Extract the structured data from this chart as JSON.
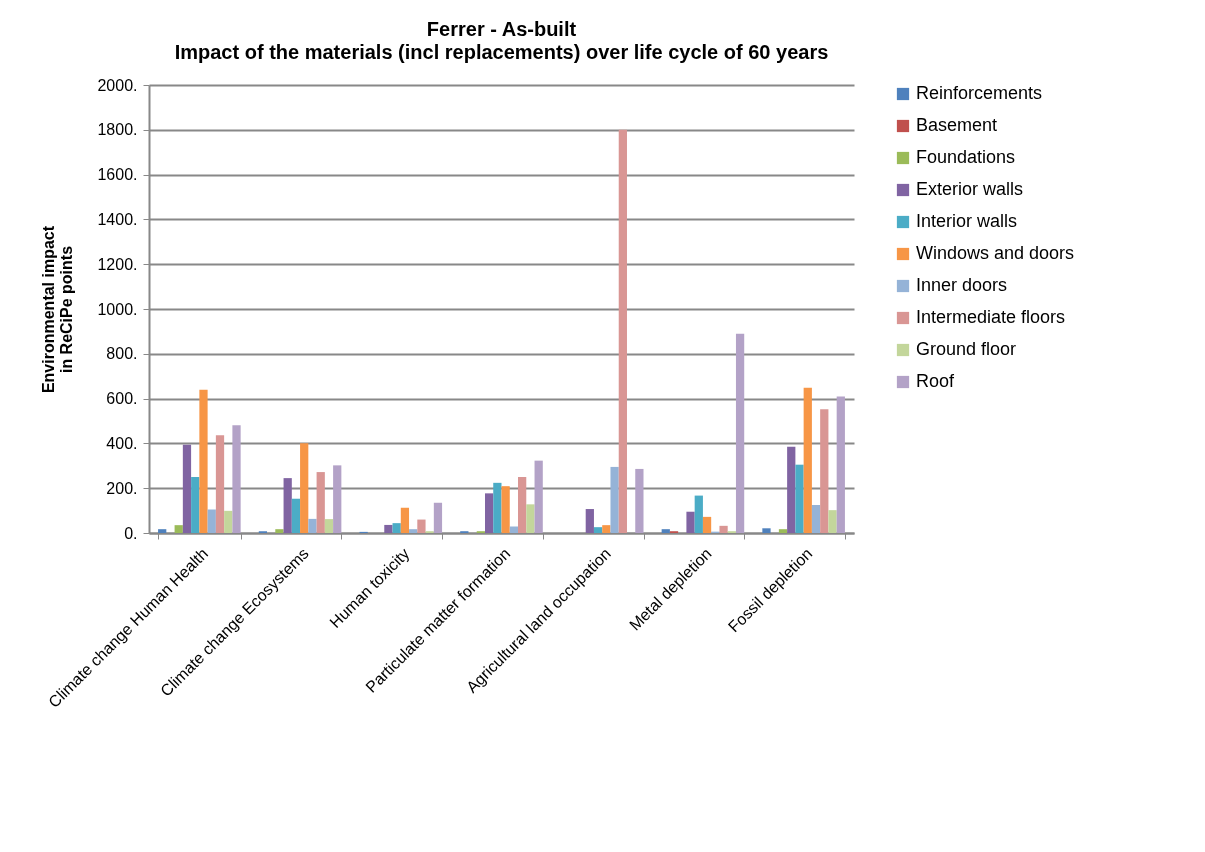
{
  "chart_data": {
    "type": "bar",
    "title": "Ferrer - As-built",
    "subtitle": "Impact of the materials (incl replacements) over life cycle of 60 years",
    "ylabel": "Environmental impact\nin ReCiPe points",
    "categories": [
      "Climate change Human Health",
      "Climate change Ecosystems",
      "Human toxicity",
      "Particulate matter formation",
      "Agricultural land occupation",
      "Metal depletion",
      "Fossil depletion"
    ],
    "series": [
      {
        "name": "Reinforcements",
        "color": "#4f81bd",
        "values": [
          17,
          8,
          5,
          8,
          0,
          17,
          21
        ]
      },
      {
        "name": "Basement",
        "color": "#c0504d",
        "values": [
          0,
          0,
          0,
          0,
          0,
          8,
          0
        ]
      },
      {
        "name": "Foundations",
        "color": "#9bbb59",
        "values": [
          35,
          17,
          0,
          8,
          0,
          0,
          17
        ]
      },
      {
        "name": "Exterior walls",
        "color": "#8064a2",
        "values": [
          394,
          245,
          36,
          177,
          107,
          95,
          385
        ]
      },
      {
        "name": "Interior walls",
        "color": "#4bacc6",
        "values": [
          250,
          153,
          44,
          224,
          26,
          167,
          305
        ]
      },
      {
        "name": "Windows and doors",
        "color": "#f79646",
        "values": [
          640,
          401,
          113,
          209,
          35,
          72,
          648
        ]
      },
      {
        "name": "Inner doors",
        "color": "#95b3d7",
        "values": [
          105,
          63,
          17,
          29,
          295,
          6,
          125
        ]
      },
      {
        "name": "Intermediate floors",
        "color": "#d99694",
        "values": [
          436,
          272,
          60,
          250,
          1800,
          32,
          553
        ]
      },
      {
        "name": "Ground floor",
        "color": "#c3d69b",
        "values": [
          99,
          62,
          8,
          128,
          0,
          8,
          102
        ]
      },
      {
        "name": "Roof",
        "color": "#b3a2c7",
        "values": [
          481,
          302,
          135,
          323,
          286,
          889,
          609
        ]
      }
    ],
    "ylim": [
      0,
      2000
    ],
    "yticks": [
      {
        "value": 0,
        "label": "0."
      },
      {
        "value": 200,
        "label": "200."
      },
      {
        "value": 400,
        "label": "400."
      },
      {
        "value": 600,
        "label": "600."
      },
      {
        "value": 800,
        "label": "800."
      },
      {
        "value": 1000,
        "label": "1000."
      },
      {
        "value": 1200,
        "label": "1200."
      },
      {
        "value": 1400,
        "label": "1400."
      },
      {
        "value": 1600,
        "label": "1600."
      },
      {
        "value": 1800,
        "label": "1800."
      },
      {
        "value": 2000,
        "label": "2000."
      }
    ],
    "grid": "y",
    "legend": "right"
  }
}
